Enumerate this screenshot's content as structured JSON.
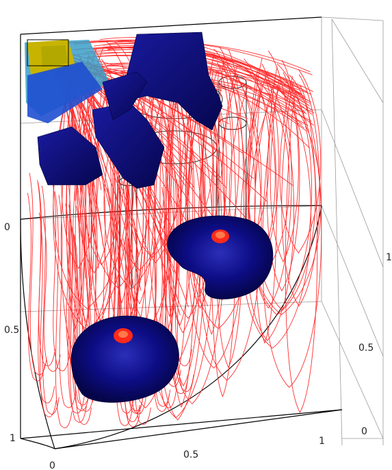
{
  "axes": {
    "left_axis": {
      "ticks": [
        "0",
        "0.5",
        "1"
      ]
    },
    "bottom_axis": {
      "ticks": [
        "0",
        "0.5",
        "1"
      ]
    },
    "right_axis": {
      "ticks": [
        "1",
        "0.5",
        "0"
      ]
    }
  },
  "colors": {
    "streamlines": "#ff1a1a",
    "isosurface": "#0a0a78",
    "inlet_surface": "#c8b400",
    "inlet_edge": "#3a9fc8",
    "frame": "#000000",
    "grid": "#9a9a9a",
    "background": "#ffffff"
  }
}
